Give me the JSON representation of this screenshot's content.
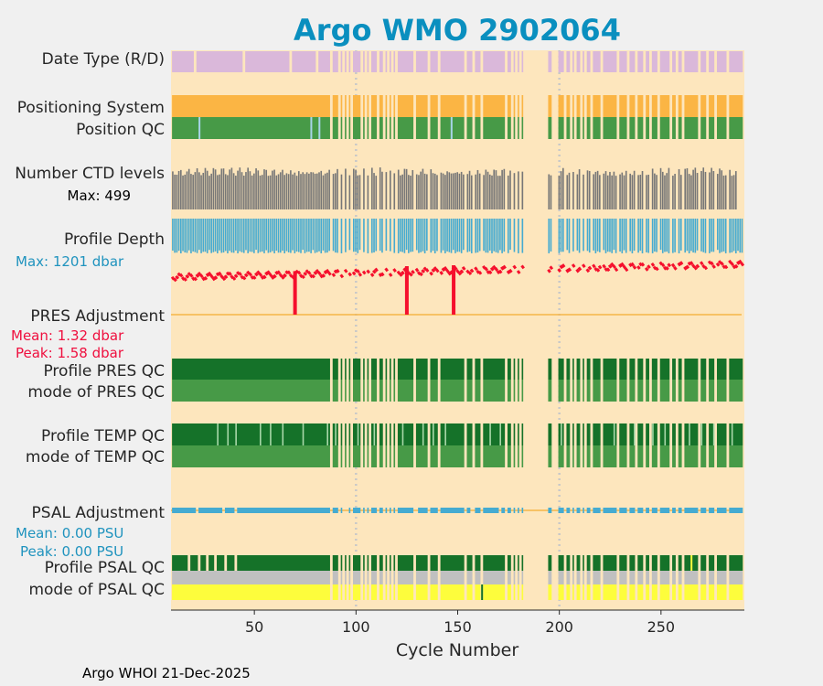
{
  "chart_data": {
    "type": "bar",
    "title": "Argo WMO 2902064",
    "xlabel": "Cycle Number",
    "xlim": [
      9,
      291
    ],
    "xticks": [
      50,
      100,
      150,
      200,
      250
    ],
    "grid_x": [
      100,
      200
    ],
    "footer": "Argo WHOI 21-Dec-2025",
    "colors": {
      "background_panel": "#fde6bd",
      "figure_bg": "#f0f0f0",
      "title": "#0a8fbf",
      "data_type": "#dab8da",
      "positioning": "#fbb544",
      "qc_good": "#479a47",
      "qc_dark": "#157229",
      "ctd": "#777777",
      "depth": "#45abd1",
      "pres_trace": "#f5102d",
      "pres_line": "#f5b548",
      "psal": "#45abd1",
      "psal_gray": "#c0c0c0",
      "psal_yellow": "#fdfd3c",
      "accent_blue": "#1f93be",
      "accent_red": "#ef0f3e"
    },
    "labels": {
      "data_type": "Date Type (R/D)",
      "positioning": "Positioning System",
      "position_qc": "Position QC",
      "ctd_levels": "Number CTD levels",
      "ctd_max": "Max: 499",
      "profile_depth": "Profile Depth",
      "depth_max": "Max: 1201 dbar",
      "pres_adjustment": "PRES Adjustment",
      "pres_mean": "Mean: 1.32 dbar",
      "pres_peak": "Peak: 1.58 dbar",
      "profile_pres_qc": "Profile PRES QC",
      "mode_pres_qc": "mode of PRES QC",
      "profile_temp_qc": "Profile TEMP QC",
      "mode_temp_qc": "mode of TEMP QC",
      "psal_adjustment": "PSAL Adjustment",
      "psal_mean": "Mean: 0.00 PSU",
      "psal_peak": "Peak: 0.00 PSU",
      "profile_psal_qc": "Profile PSAL QC",
      "mode_psal_qc": "mode of PSAL QC"
    },
    "missing_cycles": [
      88,
      92,
      94,
      96,
      98,
      103,
      105,
      107,
      111,
      114,
      116,
      118,
      120,
      129,
      136,
      141,
      154,
      158,
      162,
      174,
      177,
      179,
      181,
      183,
      184,
      185,
      186,
      187,
      188,
      189,
      190,
      191,
      192,
      193,
      194,
      197,
      198,
      199,
      203,
      206,
      208,
      211,
      213,
      216,
      221,
      229,
      234,
      238,
      242,
      245,
      249,
      255,
      258,
      261,
      269,
      273,
      277,
      283
    ],
    "delayed_mode_gaps": [
      21,
      45,
      68,
      81
    ],
    "position_qc_flag_cycles": [
      23,
      78,
      82,
      147
    ],
    "pres_spikes": [
      {
        "cycle": 70,
        "value": -30
      },
      {
        "cycle": 125,
        "value": -30
      },
      {
        "cycle": 148,
        "value": -30
      }
    ],
    "psal_gray_gaps": [
      18,
      23,
      27,
      31,
      36,
      41,
      45,
      49,
      63,
      66,
      72,
      77,
      82,
      88,
      93,
      99,
      104,
      108,
      113,
      117,
      121,
      127,
      132,
      136,
      141,
      146,
      150,
      156,
      160,
      165,
      169,
      172,
      218,
      223,
      228,
      233,
      238,
      243,
      247,
      252,
      256,
      259,
      264,
      266,
      270,
      275,
      279,
      284
    ],
    "temp_qc_light": [
      32,
      37,
      41,
      53,
      58,
      64,
      74,
      86,
      90,
      101,
      109,
      123,
      133,
      138,
      144,
      166,
      171,
      201,
      227,
      237,
      246,
      252,
      264,
      270,
      276,
      285
    ]
  }
}
